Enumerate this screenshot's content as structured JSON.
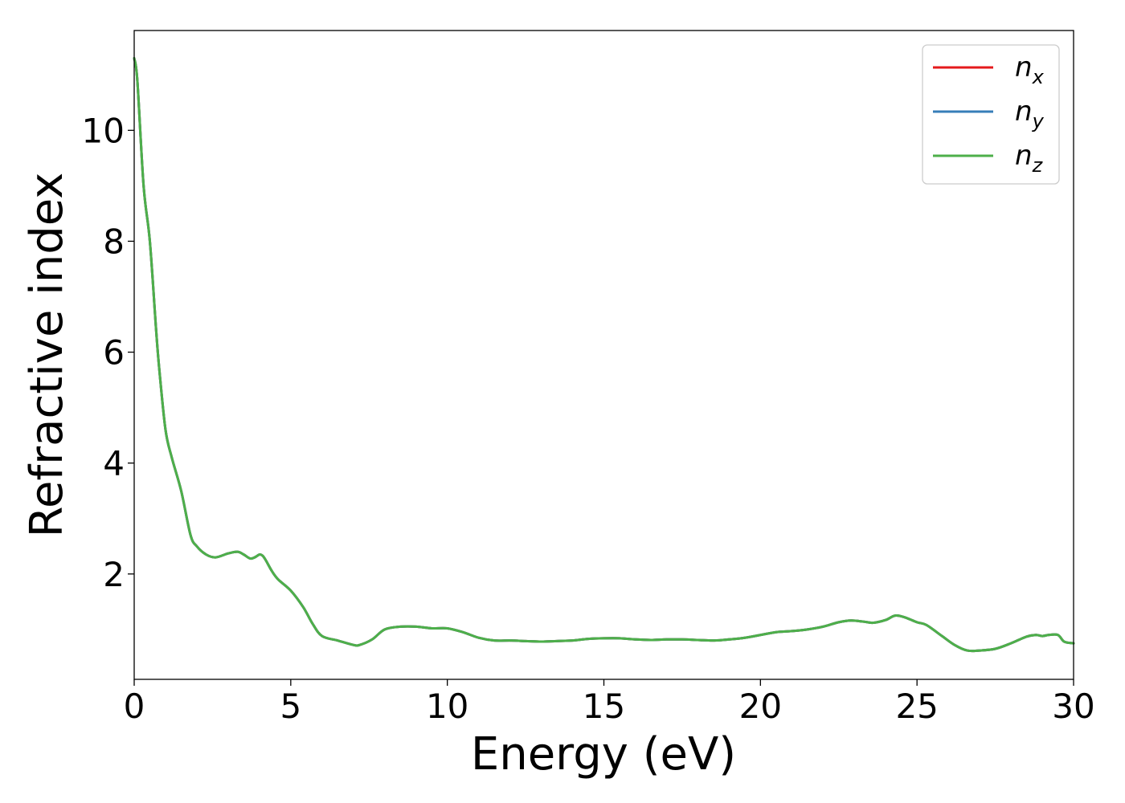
{
  "chart_data": {
    "type": "line",
    "title": "",
    "xlabel": "Energy (eV)",
    "ylabel": "Refractive index",
    "xlim": [
      0,
      30
    ],
    "ylim": [
      0.1,
      11.8
    ],
    "xticks": [
      0,
      5,
      10,
      15,
      20,
      25,
      30
    ],
    "yticks": [
      2,
      4,
      6,
      8,
      10
    ],
    "grid": false,
    "legend": {
      "placement": "top-right",
      "entries": [
        {
          "base": "n",
          "sub": "x",
          "color": "#e41a1c"
        },
        {
          "base": "n",
          "sub": "y",
          "color": "#377eb8"
        },
        {
          "base": "n",
          "sub": "z",
          "color": "#4daf4a"
        }
      ]
    },
    "x": [
      0,
      0.1,
      0.3,
      0.5,
      0.7,
      0.8,
      1.0,
      1.2,
      1.5,
      1.8,
      2.0,
      2.3,
      2.6,
      3.0,
      3.3,
      3.5,
      3.7,
      3.85,
      4.0,
      4.1,
      4.2,
      4.4,
      4.6,
      5.0,
      5.4,
      5.7,
      6.0,
      6.5,
      7.0,
      7.2,
      7.6,
      8.0,
      8.5,
      9.0,
      9.5,
      10.0,
      10.5,
      11.0,
      11.5,
      12.0,
      12.5,
      13.0,
      13.5,
      14.0,
      14.5,
      15.0,
      15.5,
      16.0,
      16.5,
      17.0,
      17.5,
      18.0,
      18.5,
      19.0,
      19.5,
      20.0,
      20.5,
      21.0,
      21.5,
      22.0,
      22.5,
      22.9,
      23.3,
      23.6,
      24.0,
      24.3,
      24.6,
      25.0,
      25.3,
      25.8,
      26.2,
      26.6,
      27.0,
      27.5,
      28.0,
      28.5,
      28.8,
      29.0,
      29.2,
      29.5,
      29.7,
      30.0
    ],
    "series": [
      {
        "name": "n_x",
        "values": [
          11.3,
          10.9,
          9.0,
          8.0,
          6.4,
          5.7,
          4.6,
          4.1,
          3.5,
          2.7,
          2.5,
          2.35,
          2.3,
          2.37,
          2.4,
          2.35,
          2.28,
          2.3,
          2.35,
          2.33,
          2.25,
          2.05,
          1.9,
          1.7,
          1.4,
          1.1,
          0.88,
          0.8,
          0.72,
          0.72,
          0.82,
          1.0,
          1.05,
          1.05,
          1.02,
          1.02,
          0.95,
          0.85,
          0.8,
          0.8,
          0.79,
          0.78,
          0.79,
          0.8,
          0.83,
          0.84,
          0.84,
          0.82,
          0.81,
          0.82,
          0.82,
          0.81,
          0.8,
          0.82,
          0.85,
          0.9,
          0.95,
          0.97,
          1.0,
          1.05,
          1.13,
          1.16,
          1.14,
          1.12,
          1.17,
          1.25,
          1.22,
          1.13,
          1.08,
          0.88,
          0.72,
          0.62,
          0.62,
          0.65,
          0.75,
          0.87,
          0.9,
          0.88,
          0.9,
          0.9,
          0.78,
          0.75
        ]
      },
      {
        "name": "n_y",
        "values": [
          11.3,
          10.9,
          9.0,
          8.0,
          6.4,
          5.7,
          4.6,
          4.1,
          3.5,
          2.7,
          2.5,
          2.35,
          2.3,
          2.37,
          2.4,
          2.35,
          2.28,
          2.3,
          2.35,
          2.33,
          2.25,
          2.05,
          1.9,
          1.7,
          1.4,
          1.1,
          0.88,
          0.8,
          0.72,
          0.72,
          0.82,
          1.0,
          1.05,
          1.05,
          1.02,
          1.02,
          0.95,
          0.85,
          0.8,
          0.8,
          0.79,
          0.78,
          0.79,
          0.8,
          0.83,
          0.84,
          0.84,
          0.82,
          0.81,
          0.82,
          0.82,
          0.81,
          0.8,
          0.82,
          0.85,
          0.9,
          0.95,
          0.97,
          1.0,
          1.05,
          1.13,
          1.16,
          1.14,
          1.12,
          1.17,
          1.25,
          1.22,
          1.13,
          1.08,
          0.88,
          0.72,
          0.62,
          0.62,
          0.65,
          0.75,
          0.87,
          0.9,
          0.88,
          0.9,
          0.9,
          0.78,
          0.75
        ]
      },
      {
        "name": "n_z",
        "values": [
          11.3,
          10.9,
          9.0,
          8.0,
          6.4,
          5.7,
          4.6,
          4.1,
          3.5,
          2.7,
          2.5,
          2.35,
          2.3,
          2.37,
          2.4,
          2.35,
          2.28,
          2.3,
          2.35,
          2.33,
          2.25,
          2.05,
          1.9,
          1.7,
          1.4,
          1.1,
          0.88,
          0.8,
          0.72,
          0.72,
          0.82,
          1.0,
          1.05,
          1.05,
          1.02,
          1.02,
          0.95,
          0.85,
          0.8,
          0.8,
          0.79,
          0.78,
          0.79,
          0.8,
          0.83,
          0.84,
          0.84,
          0.82,
          0.81,
          0.82,
          0.82,
          0.81,
          0.8,
          0.82,
          0.85,
          0.9,
          0.95,
          0.97,
          1.0,
          1.05,
          1.13,
          1.16,
          1.14,
          1.12,
          1.17,
          1.25,
          1.22,
          1.13,
          1.08,
          0.88,
          0.72,
          0.62,
          0.62,
          0.65,
          0.75,
          0.87,
          0.9,
          0.88,
          0.9,
          0.9,
          0.78,
          0.75
        ]
      }
    ]
  }
}
